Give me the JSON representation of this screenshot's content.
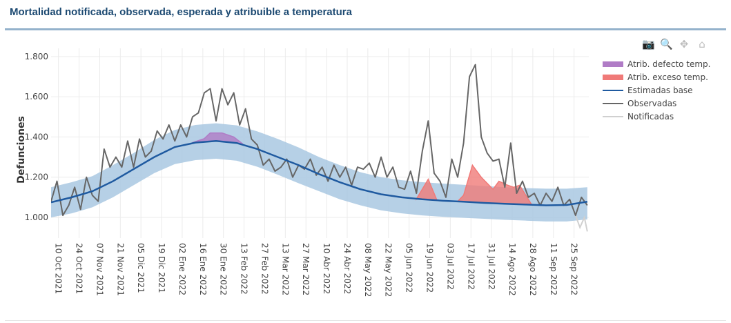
{
  "title": "Mortalidad notificada, observada, esperada y atribuible a temperatura",
  "modebar": [
    {
      "icon": "camera-icon",
      "label": "Descargar como png"
    },
    {
      "icon": "zoom-icon",
      "label": "Zoom"
    },
    {
      "icon": "pan-icon",
      "label": "Pan"
    },
    {
      "icon": "home-icon",
      "label": "Reset axes"
    }
  ],
  "chart_data": {
    "type": "line",
    "title": "Mortalidad notificada, observada, esperada y atribuible a temperatura",
    "ylabel": "Defunciones",
    "xlabel": "",
    "x_start_date": "2021-10-05",
    "x_unit": "days since 2021-10-05",
    "xlim": [
      0,
      365
    ],
    "ylim": [
      1000,
      1800
    ],
    "yrange_shown": [
      930,
      1830
    ],
    "yticks": [
      1000,
      1200,
      1400,
      1600,
      1800
    ],
    "ytick_labels": [
      "1.000",
      "1.200",
      "1.400",
      "1.600",
      "1.800"
    ],
    "xticks": [
      5,
      19,
      33,
      47,
      61,
      75,
      89,
      103,
      117,
      131,
      145,
      159,
      173,
      187,
      201,
      215,
      229,
      243,
      257,
      271,
      285,
      299,
      313,
      327,
      341,
      355
    ],
    "xtick_labels": [
      "10 Oct 2021",
      "24 Oct 2021",
      "07 Nov 2021",
      "21 Nov 2021",
      "05 Dic 2021",
      "19 Dic 2021",
      "02 Ene 2022",
      "16 Ene 2022",
      "30 Ene 2022",
      "13 Feb 2022",
      "27 Feb 2022",
      "13 Mar 2022",
      "27 Mar 2022",
      "10 Abr 2022",
      "24 Abr 2022",
      "08 May 2022",
      "22 May 2022",
      "05 Jun 2022",
      "19 Jun 2022",
      "03 Jul 2022",
      "17 Jul 2022",
      "31 Jul 2022",
      "14 Ago 2022",
      "28 Ago 2022",
      "11 Sep 2022",
      "25 Sep 2022"
    ],
    "grid": true,
    "legend_position": "top-right",
    "legend": [
      {
        "name": "Atrib. defecto temp.",
        "color": "#b07cc6",
        "kind": "area"
      },
      {
        "name": "Atrib. exceso temp.",
        "color": "#f07a78",
        "kind": "area"
      },
      {
        "name": "Estimadas base",
        "color": "#1f5aa0",
        "kind": "line"
      },
      {
        "name": "Observadas",
        "color": "#666666",
        "kind": "line"
      },
      {
        "name": "Notificadas",
        "color": "#d0d0d0",
        "kind": "line"
      }
    ],
    "band": {
      "color": "#a9c8e2",
      "x": [
        0,
        14,
        28,
        42,
        56,
        70,
        84,
        98,
        112,
        126,
        140,
        154,
        168,
        182,
        196,
        210,
        224,
        238,
        252,
        266,
        280,
        294,
        308,
        322,
        336,
        350,
        364
      ],
      "upper": [
        1150,
        1175,
        1205,
        1260,
        1320,
        1385,
        1435,
        1460,
        1468,
        1458,
        1428,
        1390,
        1348,
        1300,
        1260,
        1225,
        1200,
        1185,
        1175,
        1168,
        1162,
        1156,
        1150,
        1146,
        1143,
        1143,
        1150
      ],
      "lower": [
        1000,
        1020,
        1050,
        1100,
        1160,
        1220,
        1265,
        1285,
        1292,
        1282,
        1252,
        1212,
        1170,
        1130,
        1090,
        1060,
        1035,
        1020,
        1010,
        1003,
        998,
        993,
        988,
        984,
        980,
        980,
        990
      ]
    },
    "series": [
      {
        "name": "Estimadas base",
        "x": [
          0,
          14,
          28,
          42,
          56,
          70,
          84,
          98,
          112,
          126,
          140,
          154,
          168,
          182,
          196,
          210,
          224,
          238,
          252,
          266,
          280,
          294,
          308,
          322,
          336,
          350,
          364
        ],
        "values": [
          1075,
          1100,
          1130,
          1180,
          1240,
          1300,
          1350,
          1372,
          1380,
          1370,
          1340,
          1300,
          1260,
          1215,
          1175,
          1140,
          1115,
          1100,
          1090,
          1083,
          1078,
          1072,
          1068,
          1064,
          1060,
          1062,
          1078
        ]
      },
      {
        "name": "Observadas",
        "x_step": 4,
        "values": [
          1080,
          1180,
          1010,
          1060,
          1150,
          1040,
          1200,
          1110,
          1080,
          1340,
          1250,
          1300,
          1250,
          1380,
          1250,
          1390,
          1300,
          1330,
          1430,
          1390,
          1460,
          1380,
          1460,
          1400,
          1500,
          1520,
          1620,
          1640,
          1480,
          1640,
          1560,
          1620,
          1460,
          1540,
          1390,
          1360,
          1260,
          1290,
          1230,
          1250,
          1290,
          1200,
          1260,
          1240,
          1290,
          1210,
          1250,
          1180,
          1260,
          1200,
          1250,
          1160,
          1250,
          1240,
          1270,
          1200,
          1300,
          1200,
          1250,
          1150,
          1140,
          1230,
          1120,
          1330,
          1480,
          1220,
          1180,
          1100,
          1290,
          1200,
          1370,
          1700,
          1760,
          1400,
          1320,
          1280,
          1290,
          1150,
          1370,
          1120,
          1180,
          1100,
          1120,
          1060,
          1120,
          1080,
          1150,
          1060,
          1090,
          1010,
          1100,
          1060
        ]
      },
      {
        "name": "Notificadas",
        "x": [
          352,
          356,
          359,
          362,
          364
        ],
        "values": [
          1090,
          1010,
          950,
          1000,
          930
        ]
      }
    ],
    "areas": [
      {
        "name": "Atrib. defecto temp.",
        "points": [
          [
            96,
            1372
          ],
          [
            104,
            1392
          ],
          [
            108,
            1420
          ],
          [
            116,
            1420
          ],
          [
            124,
            1400
          ],
          [
            130,
            1366
          ]
        ]
      },
      {
        "name": "Atrib. exceso temp.",
        "points": [
          [
            248,
            1092
          ],
          [
            256,
            1190
          ],
          [
            262,
            1084
          ]
        ]
      },
      {
        "name": "Atrib. exceso temp.",
        "points": [
          [
            276,
            1080
          ],
          [
            280,
            1110
          ],
          [
            286,
            1260
          ],
          [
            292,
            1200
          ],
          [
            300,
            1140
          ],
          [
            304,
            1180
          ],
          [
            310,
            1160
          ],
          [
            314,
            1150
          ],
          [
            318,
            1160
          ],
          [
            326,
            1066
          ]
        ]
      }
    ]
  }
}
